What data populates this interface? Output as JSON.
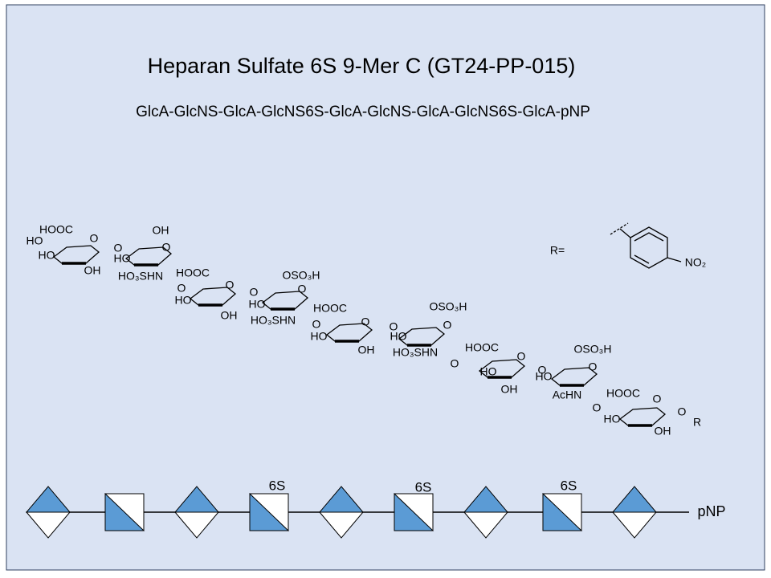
{
  "header": {
    "title": "Heparan Sulfate 6S 9-Mer C (GT24-PP-015)",
    "sequence": "GlcA-GlcNS-GlcA-GlcNS6S-GlcA-GlcNS-GlcA-GlcNS6S-GlcA-pNP"
  },
  "structure": {
    "labels": [
      "HOOC",
      "HO",
      "HO",
      "OH",
      "O",
      "O",
      "OH",
      "HO",
      "O",
      "HO₃SHN",
      "HOOC",
      "O",
      "O",
      "HO",
      "OH",
      "O",
      "OSO₃H",
      "HO",
      "O",
      "HO₃SHN",
      "HOOC",
      "O",
      "O",
      "HO",
      "OH",
      "O",
      "OSO₃H",
      "HO",
      "O",
      "HO₃SHN",
      "O",
      "HOOC",
      "O",
      "HO",
      "OH",
      "O",
      "OSO₃H",
      "HO",
      "O",
      "AcHN",
      "HOOC",
      "O",
      "O",
      "HO",
      "OH",
      "O",
      "R"
    ],
    "r_label": "R=",
    "substituent": "NO₂"
  },
  "symbols": {
    "modifications": [
      "6S",
      "6S",
      "6S"
    ],
    "end": "pNP"
  }
}
